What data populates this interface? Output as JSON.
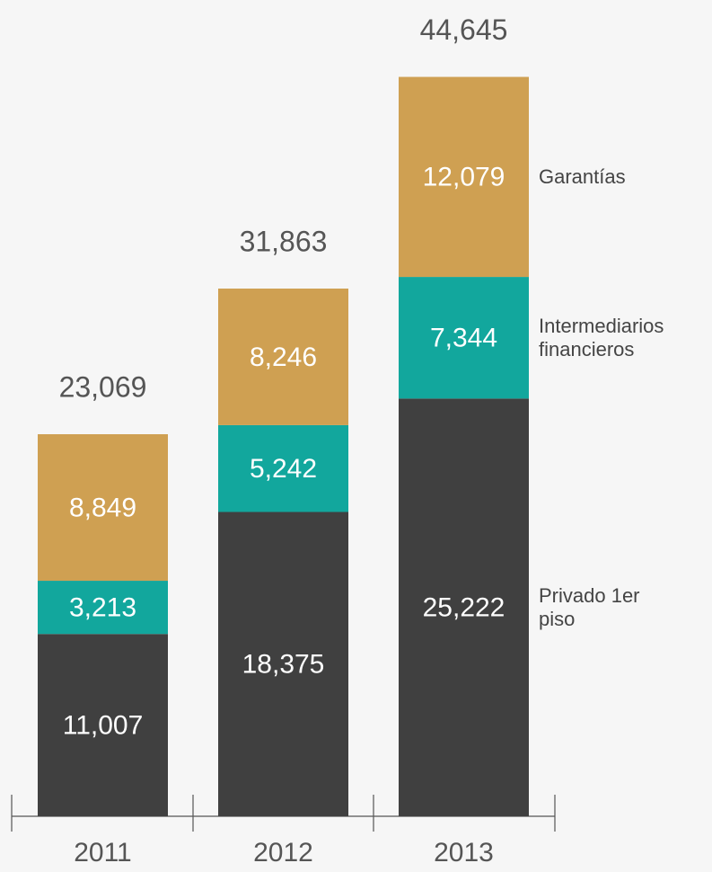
{
  "chart_data": {
    "type": "stacked-bar",
    "categories": [
      "2011",
      "2012",
      "2013"
    ],
    "series": [
      {
        "name": "Privado 1er piso",
        "color": "#404040",
        "values": [
          11007,
          18375,
          25222
        ],
        "value_labels": [
          "11,007",
          "18,375",
          "25,222"
        ]
      },
      {
        "name": "Intermediarios financieros",
        "color": "#12a79d",
        "values": [
          3213,
          5242,
          7344
        ],
        "value_labels": [
          "3,213",
          "5,242",
          "7,344"
        ]
      },
      {
        "name": "Garantías",
        "color": "#cfa052",
        "values": [
          8849,
          8246,
          12079
        ],
        "value_labels": [
          "8,849",
          "8,246",
          "12,079"
        ]
      }
    ],
    "totals": [
      23069,
      31863,
      44645
    ],
    "total_labels": [
      "23,069",
      "31,863",
      "44,645"
    ],
    "ylim": [
      0,
      45000
    ]
  }
}
